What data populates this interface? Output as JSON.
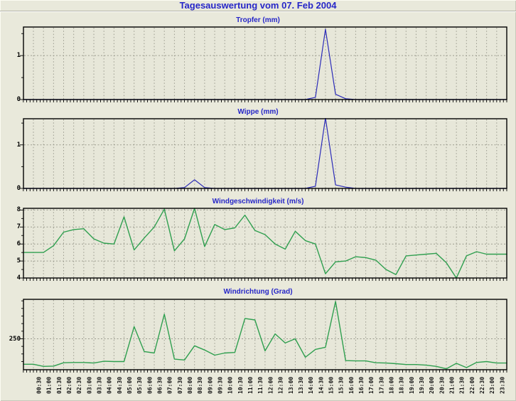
{
  "title": "Tagesauswertung vom 07. Feb 2004",
  "colors": {
    "title_text": "#2626c8",
    "blue_line": "#2b2bb8",
    "green_line": "#2f9f4f",
    "grid": "#9b9b8e",
    "plot_border": "#000000",
    "plot_bg": "#e7e7d9",
    "page_bg": "#e9e9db",
    "tick_text": "#161616"
  },
  "x_axis": {
    "tick_labels": [
      "00:30",
      "01:00",
      "01:30",
      "02:00",
      "02:30",
      "03:00",
      "03:30",
      "04:00",
      "04:30",
      "05:00",
      "05:30",
      "06:00",
      "06:30",
      "07:00",
      "07:30",
      "08:00",
      "08:30",
      "09:00",
      "09:30",
      "10:00",
      "10:30",
      "11:00",
      "11:30",
      "12:00",
      "12:30",
      "13:00",
      "13:30",
      "14:00",
      "14:30",
      "15:00",
      "15:30",
      "16:00",
      "16:30",
      "17:00",
      "17:30",
      "18:00",
      "18:30",
      "19:00",
      "19:30",
      "20:00",
      "20:30",
      "21:00",
      "21:30",
      "22:00",
      "22:30",
      "23:00",
      "23:30"
    ]
  },
  "chart_data": [
    {
      "type": "line",
      "title": "Tropfer (mm)",
      "color_key": "blue_line",
      "ylim": [
        0,
        1.65
      ],
      "y_tick_labels": [
        1,
        0
      ],
      "y_gridlines": [
        1
      ],
      "y_minor_ticks": [
        0.5,
        1.5
      ],
      "grid": true,
      "values": [
        0,
        0,
        0,
        0,
        0,
        0,
        0,
        0,
        0,
        0,
        0,
        0,
        0,
        0,
        0,
        0,
        0,
        0,
        0,
        0,
        0,
        0,
        0,
        0,
        0,
        0,
        0,
        0,
        0.05,
        1.6,
        0.12,
        0.02,
        0,
        0,
        0,
        0,
        0,
        0,
        0,
        0,
        0,
        0,
        0,
        0,
        0,
        0,
        0
      ]
    },
    {
      "type": "line",
      "title": "Wippe (mm)",
      "color_key": "blue_line",
      "ylim": [
        0,
        1.6
      ],
      "y_tick_labels": [
        1,
        0
      ],
      "y_gridlines": [
        1
      ],
      "y_minor_ticks": [
        0.5,
        1.5
      ],
      "grid": true,
      "values": [
        0,
        0,
        0,
        0,
        0,
        0,
        0,
        0,
        0,
        0,
        0,
        0,
        0,
        0,
        0,
        0.02,
        0.2,
        0.02,
        0,
        0,
        0,
        0,
        0,
        0,
        0,
        0,
        0,
        0,
        0.05,
        1.62,
        0.08,
        0.03,
        0,
        0,
        0,
        0,
        0,
        0,
        0,
        0,
        0,
        0,
        0,
        0,
        0,
        0,
        0
      ]
    },
    {
      "type": "line",
      "title": "Windgeschwindigkeit (m/s)",
      "color_key": "green_line",
      "ylim": [
        4,
        8.1
      ],
      "y_tick_labels": [
        8,
        7,
        6,
        5,
        4
      ],
      "y_gridlines": [
        8,
        7,
        6,
        5
      ],
      "y_minor_ticks": [
        4.5,
        5.5,
        6.5,
        7.5
      ],
      "grid": true,
      "values": [
        5.5,
        5.5,
        5.9,
        6.7,
        6.85,
        6.9,
        6.3,
        6.05,
        6.0,
        7.6,
        5.65,
        6.35,
        7.0,
        8.05,
        5.6,
        6.3,
        8.1,
        5.85,
        7.15,
        6.85,
        6.95,
        7.7,
        6.8,
        6.55,
        6.0,
        5.7,
        6.75,
        6.2,
        6.0,
        4.25,
        4.95,
        5.0,
        5.25,
        5.2,
        5.05,
        4.5,
        4.2,
        5.3,
        5.35,
        5.4,
        5.45,
        4.9,
        4.0,
        5.3,
        5.55,
        5.4,
        5.4
      ]
    },
    {
      "type": "line",
      "title": "Windrichtung (Grad)",
      "color_key": "green_line",
      "ylim": [
        148,
        380
      ],
      "y_tick_labels": [
        250
      ],
      "y_gridlines": [
        250
      ],
      "y_minor_ticks": [
        175,
        200,
        225,
        275,
        300,
        325,
        350,
        375
      ],
      "grid": true,
      "values": [
        166,
        159,
        160,
        171,
        172,
        172,
        170,
        176,
        175,
        175,
        290,
        208,
        203,
        331,
        183,
        180,
        227,
        213,
        196,
        203,
        205,
        317,
        312,
        210,
        266,
        236,
        250,
        189,
        215,
        222,
        373,
        178,
        177,
        177,
        171,
        170,
        168,
        165,
        165,
        163,
        159,
        151,
        169,
        155,
        172,
        175,
        170
      ]
    }
  ]
}
